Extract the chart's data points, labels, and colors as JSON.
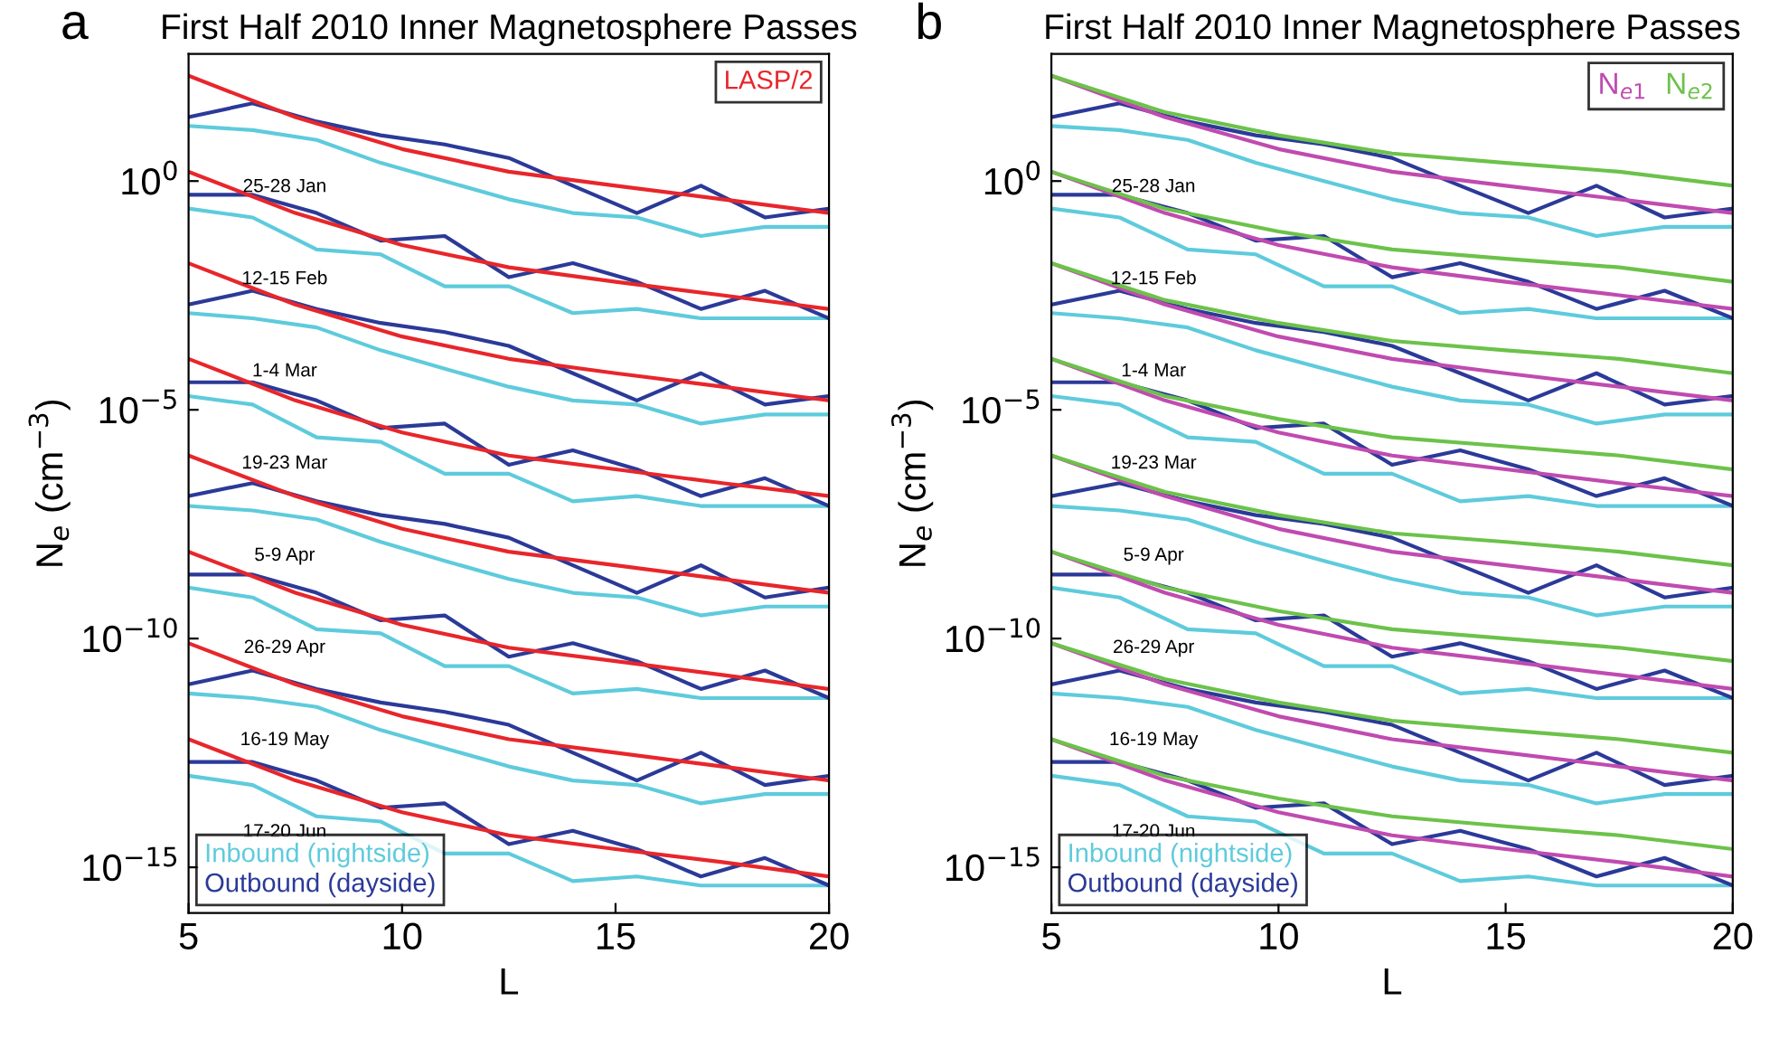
{
  "chart_data": [
    {
      "type": "line",
      "title": "First Half 2010 Inner Magnetosphere Passes",
      "xlabel": "L",
      "ylabel": "N$_{e}$ (cm$^{−3}$)",
      "log": "y",
      "xlim": [
        5,
        20
      ],
      "ylim": [
        1e-16,
        600
      ],
      "xticks": [
        5,
        10,
        15,
        20
      ],
      "yticks": [
        {
          "value": 1,
          "label": "10$^{0}$"
        },
        {
          "value": 1e-05,
          "label": "10$^{−5}$"
        },
        {
          "value": 1e-10,
          "label": "10$^{−10}$"
        },
        {
          "value": 1e-15,
          "label": "10$^{−15}$"
        }
      ],
      "legend": "bottom left",
      "line_style": "solid",
      "annotations": [
        "a",
        "25-28 Jan",
        "12-15 Feb",
        "1-4 Mar",
        "19-23 Mar",
        "5-9 Apr",
        "26-29 Apr",
        "16-19 May",
        "17-20 Jun"
      ],
      "series": [
        {
          "name": "Inbound (nightside)",
          "color": "#5ecbdc",
          "x": [
            5,
            6.5,
            8,
            9.5,
            11,
            12.5,
            14,
            15.5,
            17,
            18.5,
            20
          ],
          "values": [
            16,
            13,
            7.9,
            2.5,
            1,
            0.4,
            0.2,
            0.16,
            0.063,
            0.1,
            0.1
          ]
        },
        {
          "name": "Outbound (dayside)",
          "color": "#2b3a98",
          "x": [
            5,
            6.5,
            8,
            9.5,
            11,
            12.5,
            14,
            15.5,
            17,
            18.5,
            20
          ],
          "values": [
            25,
            50,
            20,
            10,
            6.3,
            3.2,
            0.79,
            0.2,
            0.79,
            0.16,
            0.25
          ]
        },
        {
          "name": "LASP/2",
          "color": "#e8262b",
          "x": [
            5,
            7.5,
            10,
            12.5,
            15,
            17.5,
            20
          ],
          "values": [
            200,
            25,
            5,
            1.6,
            0.79,
            0.4,
            0.2
          ]
        },
        {
          "color": "#5ecbdc",
          "x": [
            5,
            6.5,
            8,
            9.5,
            11,
            12.5,
            14,
            15.5,
            17,
            18.5,
            20
          ],
          "values": [
            0.25,
            0.16,
            0.032,
            0.025,
            0.005,
            0.005,
            0.0013,
            0.0016,
            0.001,
            0.001,
            0.001
          ]
        },
        {
          "color": "#2b3a98",
          "x": [
            5,
            6.5,
            8,
            9.5,
            11,
            12.5,
            14,
            15.5,
            17,
            18.5,
            20
          ],
          "values": [
            0.5,
            0.5,
            0.2,
            0.05,
            0.063,
            0.0079,
            0.016,
            0.0063,
            0.0016,
            0.004,
            0.001
          ]
        },
        {
          "color": "#e8262b",
          "x": [
            5,
            7.5,
            10,
            12.5,
            15,
            17.5,
            20
          ],
          "values": [
            1.6,
            0.2,
            0.04,
            0.013,
            0.0063,
            0.0032,
            0.0016
          ]
        },
        {
          "color": "#5ecbdc",
          "x": [
            5,
            6.5,
            8,
            9.5,
            11,
            12.5,
            14,
            15.5,
            17,
            18.5,
            20
          ],
          "values": [
            0.0013,
            0.001,
            0.00063,
            0.0002,
            7.9e-05,
            3.2e-05,
            1.6e-05,
            1.3e-05,
            5e-06,
            7.9e-06,
            7.9e-06
          ]
        },
        {
          "color": "#2b3a98",
          "x": [
            5,
            6.5,
            8,
            9.5,
            11,
            12.5,
            14,
            15.5,
            17,
            18.5,
            20
          ],
          "values": [
            0.002,
            0.004,
            0.0016,
            0.00079,
            0.0005,
            0.00025,
            6.3e-05,
            1.6e-05,
            6.3e-05,
            1.3e-05,
            2e-05
          ]
        },
        {
          "color": "#e8262b",
          "x": [
            5,
            7.5,
            10,
            12.5,
            15,
            17.5,
            20
          ],
          "values": [
            0.016,
            0.002,
            0.0004,
            0.00013,
            6.3e-05,
            3.2e-05,
            1.6e-05
          ]
        },
        {
          "color": "#5ecbdc",
          "x": [
            5,
            6.5,
            8,
            9.5,
            11,
            12.5,
            14,
            15.5,
            17,
            18.5,
            20
          ],
          "values": [
            2e-05,
            1.3e-05,
            2.5e-06,
            2e-06,
            4e-07,
            4e-07,
            1e-07,
            1.3e-07,
            7.9e-08,
            7.9e-08,
            7.9e-08
          ]
        },
        {
          "color": "#2b3a98",
          "x": [
            5,
            6.5,
            8,
            9.5,
            11,
            12.5,
            14,
            15.5,
            17,
            18.5,
            20
          ],
          "values": [
            4e-05,
            4e-05,
            1.6e-05,
            4e-06,
            5e-06,
            6.3e-07,
            1.3e-06,
            5e-07,
            1.3e-07,
            3.2e-07,
            7.9e-08
          ]
        },
        {
          "color": "#e8262b",
          "x": [
            5,
            7.5,
            10,
            12.5,
            15,
            17.5,
            20
          ],
          "values": [
            0.00013,
            1.6e-05,
            3.2e-06,
            1e-06,
            5e-07,
            2.5e-07,
            1.3e-07
          ]
        },
        {
          "color": "#5ecbdc",
          "x": [
            5,
            6.5,
            8,
            9.5,
            11,
            12.5,
            14,
            15.5,
            17,
            18.5,
            20
          ],
          "values": [
            7.9e-08,
            6.3e-08,
            4e-08,
            1.3e-08,
            5e-09,
            2e-09,
            1e-09,
            7.9e-10,
            3.2e-10,
            5e-10,
            5e-10
          ]
        },
        {
          "color": "#2b3a98",
          "x": [
            5,
            6.5,
            8,
            9.5,
            11,
            12.5,
            14,
            15.5,
            17,
            18.5,
            20
          ],
          "values": [
            1.3e-07,
            2.5e-07,
            1e-07,
            5e-08,
            3.2e-08,
            1.6e-08,
            4e-09,
            1e-09,
            4e-09,
            7.9e-10,
            1.3e-09
          ]
        },
        {
          "color": "#e8262b",
          "x": [
            5,
            7.5,
            10,
            12.5,
            15,
            17.5,
            20
          ],
          "values": [
            1e-06,
            1.3e-07,
            2.5e-08,
            7.9e-09,
            4e-09,
            2e-09,
            1e-09
          ]
        },
        {
          "color": "#5ecbdc",
          "x": [
            5,
            6.5,
            8,
            9.5,
            11,
            12.5,
            14,
            15.5,
            17,
            18.5,
            20
          ],
          "values": [
            1.3e-09,
            7.9e-10,
            1.6e-10,
            1.3e-10,
            2.5e-11,
            2.5e-11,
            6.3e-12,
            7.9e-12,
            5e-12,
            5e-12,
            5e-12
          ]
        },
        {
          "color": "#2b3a98",
          "x": [
            5,
            6.5,
            8,
            9.5,
            11,
            12.5,
            14,
            15.5,
            17,
            18.5,
            20
          ],
          "values": [
            2.5e-09,
            2.5e-09,
            1e-09,
            2.5e-10,
            3.2e-10,
            4e-11,
            7.9e-11,
            3.2e-11,
            7.9e-12,
            2e-11,
            5e-12
          ]
        },
        {
          "color": "#e8262b",
          "x": [
            5,
            7.5,
            10,
            12.5,
            15,
            17.5,
            20
          ],
          "values": [
            7.9e-09,
            1e-09,
            2e-10,
            6.3e-11,
            3.2e-11,
            1.6e-11,
            7.9e-12
          ]
        },
        {
          "color": "#5ecbdc",
          "x": [
            5,
            6.5,
            8,
            9.5,
            11,
            12.5,
            14,
            15.5,
            17,
            18.5,
            20
          ],
          "values": [
            6.3e-12,
            5e-12,
            3.2e-12,
            1e-12,
            4e-13,
            1.6e-13,
            7.9e-14,
            6.3e-14,
            2.5e-14,
            4e-14,
            4e-14
          ]
        },
        {
          "color": "#2b3a98",
          "x": [
            5,
            6.5,
            8,
            9.5,
            11,
            12.5,
            14,
            15.5,
            17,
            18.5,
            20
          ],
          "values": [
            1e-11,
            2e-11,
            7.9e-12,
            4e-12,
            2.5e-12,
            1.3e-12,
            3.2e-13,
            7.9e-14,
            3.2e-13,
            6.3e-14,
            1e-13
          ]
        },
        {
          "color": "#e8262b",
          "x": [
            5,
            7.5,
            10,
            12.5,
            15,
            17.5,
            20
          ],
          "values": [
            7.9e-11,
            1e-11,
            2e-12,
            6.3e-13,
            3.2e-13,
            1.6e-13,
            7.9e-14
          ]
        },
        {
          "color": "#5ecbdc",
          "x": [
            5,
            6.5,
            8,
            9.5,
            11,
            12.5,
            14,
            15.5,
            17,
            18.5,
            20
          ],
          "values": [
            1e-13,
            6.3e-14,
            1.3e-14,
            1e-14,
            2e-15,
            2e-15,
            5e-16,
            6.3e-16,
            4e-16,
            4e-16,
            4e-16
          ]
        },
        {
          "color": "#2b3a98",
          "x": [
            5,
            6.5,
            8,
            9.5,
            11,
            12.5,
            14,
            15.5,
            17,
            18.5,
            20
          ],
          "values": [
            2e-13,
            2e-13,
            7.9e-14,
            2e-14,
            2.5e-14,
            3.2e-15,
            6.3e-15,
            2.5e-15,
            6.3e-16,
            1.6e-15,
            4e-16
          ]
        },
        {
          "color": "#e8262b",
          "x": [
            5,
            7.5,
            10,
            12.5,
            15,
            17.5,
            20
          ],
          "values": [
            6.3e-13,
            7.9e-14,
            1.6e-14,
            5e-15,
            2.5e-15,
            1.3e-15,
            6.3e-16
          ]
        }
      ]
    },
    {
      "type": "line",
      "title": "First Half 2010 Inner Magnetosphere Passes",
      "xlabel": "L",
      "ylabel": "N$_{e}$ (cm$^{−3}$)",
      "log": "y",
      "xlim": [
        5,
        20
      ],
      "ylim": [
        1e-16,
        600
      ],
      "xticks": [
        5,
        10,
        15,
        20
      ],
      "yticks": [
        {
          "value": 1,
          "label": "10$^{0}$"
        },
        {
          "value": 1e-05,
          "label": "10$^{−5}$"
        },
        {
          "value": 1e-10,
          "label": "10$^{−10}$"
        },
        {
          "value": 1e-15,
          "label": "10$^{−15}$"
        }
      ],
      "legend": "bottom left",
      "line_style": "solid",
      "annotations": [
        "b",
        "25-28 Jan",
        "12-15 Feb",
        "1-4 Mar",
        "19-23 Mar",
        "5-9 Apr",
        "26-29 Apr",
        "16-19 May",
        "17-20 Jun"
      ],
      "series": [
        {
          "name": "Inbound (nightside)",
          "color": "#5ecbdc",
          "x": [
            5,
            6.5,
            8,
            9.5,
            11,
            12.5,
            14,
            15.5,
            17,
            18.5,
            20
          ],
          "values": [
            16,
            13,
            7.9,
            2.5,
            1,
            0.4,
            0.2,
            0.16,
            0.063,
            0.1,
            0.1
          ]
        },
        {
          "name": "Outbound (dayside)",
          "color": "#2b3a98",
          "x": [
            5,
            6.5,
            8,
            9.5,
            11,
            12.5,
            14,
            15.5,
            17,
            18.5,
            20
          ],
          "values": [
            25,
            50,
            20,
            10,
            6.3,
            3.2,
            0.79,
            0.2,
            0.79,
            0.16,
            0.25
          ]
        },
        {
          "name": "N$_{e1}$",
          "color": "#c04bb0",
          "x": [
            5,
            7.5,
            10,
            12.5,
            15,
            17.5,
            20
          ],
          "values": [
            200,
            25,
            5,
            1.6,
            0.79,
            0.4,
            0.2
          ]
        },
        {
          "name": "N$_{e2}$",
          "color": "#6cc24a",
          "x": [
            5,
            7.5,
            10,
            12.5,
            15,
            17.5,
            20
          ],
          "values": [
            200,
            32,
            10,
            4,
            2.5,
            1.6,
            0.79
          ]
        },
        {
          "color": "#5ecbdc",
          "x": [
            5,
            6.5,
            8,
            9.5,
            11,
            12.5,
            14,
            15.5,
            17,
            18.5,
            20
          ],
          "values": [
            0.25,
            0.16,
            0.032,
            0.025,
            0.005,
            0.005,
            0.0013,
            0.0016,
            0.001,
            0.001,
            0.001
          ]
        },
        {
          "color": "#2b3a98",
          "x": [
            5,
            6.5,
            8,
            9.5,
            11,
            12.5,
            14,
            15.5,
            17,
            18.5,
            20
          ],
          "values": [
            0.5,
            0.5,
            0.2,
            0.05,
            0.063,
            0.0079,
            0.016,
            0.0063,
            0.0016,
            0.004,
            0.001
          ]
        },
        {
          "color": "#c04bb0",
          "x": [
            5,
            7.5,
            10,
            12.5,
            15,
            17.5,
            20
          ],
          "values": [
            1.6,
            0.2,
            0.04,
            0.013,
            0.0063,
            0.0032,
            0.0016
          ]
        },
        {
          "color": "#6cc24a",
          "x": [
            5,
            7.5,
            10,
            12.5,
            15,
            17.5,
            20
          ],
          "values": [
            1.6,
            0.25,
            0.079,
            0.032,
            0.02,
            0.013,
            0.0063
          ]
        },
        {
          "color": "#5ecbdc",
          "x": [
            5,
            6.5,
            8,
            9.5,
            11,
            12.5,
            14,
            15.5,
            17,
            18.5,
            20
          ],
          "values": [
            0.0013,
            0.001,
            0.00063,
            0.0002,
            7.9e-05,
            3.2e-05,
            1.6e-05,
            1.3e-05,
            5e-06,
            7.9e-06,
            7.9e-06
          ]
        },
        {
          "color": "#2b3a98",
          "x": [
            5,
            6.5,
            8,
            9.5,
            11,
            12.5,
            14,
            15.5,
            17,
            18.5,
            20
          ],
          "values": [
            0.002,
            0.004,
            0.0016,
            0.00079,
            0.0005,
            0.00025,
            6.3e-05,
            1.6e-05,
            6.3e-05,
            1.3e-05,
            2e-05
          ]
        },
        {
          "color": "#c04bb0",
          "x": [
            5,
            7.5,
            10,
            12.5,
            15,
            17.5,
            20
          ],
          "values": [
            0.016,
            0.002,
            0.0004,
            0.00013,
            6.3e-05,
            3.2e-05,
            1.6e-05
          ]
        },
        {
          "color": "#6cc24a",
          "x": [
            5,
            7.5,
            10,
            12.5,
            15,
            17.5,
            20
          ],
          "values": [
            0.016,
            0.0025,
            0.00079,
            0.00032,
            0.0002,
            0.00013,
            6.3e-05
          ]
        },
        {
          "color": "#5ecbdc",
          "x": [
            5,
            6.5,
            8,
            9.5,
            11,
            12.5,
            14,
            15.5,
            17,
            18.5,
            20
          ],
          "values": [
            2e-05,
            1.3e-05,
            2.5e-06,
            2e-06,
            4e-07,
            4e-07,
            1e-07,
            1.3e-07,
            7.9e-08,
            7.9e-08,
            7.9e-08
          ]
        },
        {
          "color": "#2b3a98",
          "x": [
            5,
            6.5,
            8,
            9.5,
            11,
            12.5,
            14,
            15.5,
            17,
            18.5,
            20
          ],
          "values": [
            4e-05,
            4e-05,
            1.6e-05,
            4e-06,
            5e-06,
            6.3e-07,
            1.3e-06,
            5e-07,
            1.3e-07,
            3.2e-07,
            7.9e-08
          ]
        },
        {
          "color": "#c04bb0",
          "x": [
            5,
            7.5,
            10,
            12.5,
            15,
            17.5,
            20
          ],
          "values": [
            0.00013,
            1.6e-05,
            3.2e-06,
            1e-06,
            5e-07,
            2.5e-07,
            1.3e-07
          ]
        },
        {
          "color": "#6cc24a",
          "x": [
            5,
            7.5,
            10,
            12.5,
            15,
            17.5,
            20
          ],
          "values": [
            0.00013,
            2e-05,
            6.3e-06,
            2.5e-06,
            1.6e-06,
            1e-06,
            5e-07
          ]
        },
        {
          "color": "#5ecbdc",
          "x": [
            5,
            6.5,
            8,
            9.5,
            11,
            12.5,
            14,
            15.5,
            17,
            18.5,
            20
          ],
          "values": [
            7.9e-08,
            6.3e-08,
            4e-08,
            1.3e-08,
            5e-09,
            2e-09,
            1e-09,
            7.9e-10,
            3.2e-10,
            5e-10,
            5e-10
          ]
        },
        {
          "color": "#2b3a98",
          "x": [
            5,
            6.5,
            8,
            9.5,
            11,
            12.5,
            14,
            15.5,
            17,
            18.5,
            20
          ],
          "values": [
            1.3e-07,
            2.5e-07,
            1e-07,
            5e-08,
            3.2e-08,
            1.6e-08,
            4e-09,
            1e-09,
            4e-09,
            7.9e-10,
            1.3e-09
          ]
        },
        {
          "color": "#c04bb0",
          "x": [
            5,
            7.5,
            10,
            12.5,
            15,
            17.5,
            20
          ],
          "values": [
            1e-06,
            1.3e-07,
            2.5e-08,
            7.9e-09,
            4e-09,
            2e-09,
            1e-09
          ]
        },
        {
          "color": "#6cc24a",
          "x": [
            5,
            7.5,
            10,
            12.5,
            15,
            17.5,
            20
          ],
          "values": [
            1e-06,
            1.6e-07,
            5e-08,
            2e-08,
            1.3e-08,
            7.9e-09,
            4e-09
          ]
        },
        {
          "color": "#5ecbdc",
          "x": [
            5,
            6.5,
            8,
            9.5,
            11,
            12.5,
            14,
            15.5,
            17,
            18.5,
            20
          ],
          "values": [
            1.3e-09,
            7.9e-10,
            1.6e-10,
            1.3e-10,
            2.5e-11,
            2.5e-11,
            6.3e-12,
            7.9e-12,
            5e-12,
            5e-12,
            5e-12
          ]
        },
        {
          "color": "#2b3a98",
          "x": [
            5,
            6.5,
            8,
            9.5,
            11,
            12.5,
            14,
            15.5,
            17,
            18.5,
            20
          ],
          "values": [
            2.5e-09,
            2.5e-09,
            1e-09,
            2.5e-10,
            3.2e-10,
            4e-11,
            7.9e-11,
            3.2e-11,
            7.9e-12,
            2e-11,
            5e-12
          ]
        },
        {
          "color": "#c04bb0",
          "x": [
            5,
            7.5,
            10,
            12.5,
            15,
            17.5,
            20
          ],
          "values": [
            7.9e-09,
            1e-09,
            2e-10,
            6.3e-11,
            3.2e-11,
            1.6e-11,
            7.9e-12
          ]
        },
        {
          "color": "#6cc24a",
          "x": [
            5,
            7.5,
            10,
            12.5,
            15,
            17.5,
            20
          ],
          "values": [
            7.9e-09,
            1.3e-09,
            4e-10,
            1.6e-10,
            1e-10,
            6.3e-11,
            3.2e-11
          ]
        },
        {
          "color": "#5ecbdc",
          "x": [
            5,
            6.5,
            8,
            9.5,
            11,
            12.5,
            14,
            15.5,
            17,
            18.5,
            20
          ],
          "values": [
            6.3e-12,
            5e-12,
            3.2e-12,
            1e-12,
            4e-13,
            1.6e-13,
            7.9e-14,
            6.3e-14,
            2.5e-14,
            4e-14,
            4e-14
          ]
        },
        {
          "color": "#2b3a98",
          "x": [
            5,
            6.5,
            8,
            9.5,
            11,
            12.5,
            14,
            15.5,
            17,
            18.5,
            20
          ],
          "values": [
            1e-11,
            2e-11,
            7.9e-12,
            4e-12,
            2.5e-12,
            1.3e-12,
            3.2e-13,
            7.9e-14,
            3.2e-13,
            6.3e-14,
            1e-13
          ]
        },
        {
          "color": "#c04bb0",
          "x": [
            5,
            7.5,
            10,
            12.5,
            15,
            17.5,
            20
          ],
          "values": [
            7.9e-11,
            1e-11,
            2e-12,
            6.3e-13,
            3.2e-13,
            1.6e-13,
            7.9e-14
          ]
        },
        {
          "color": "#6cc24a",
          "x": [
            5,
            7.5,
            10,
            12.5,
            15,
            17.5,
            20
          ],
          "values": [
            7.9e-11,
            1.3e-11,
            4e-12,
            1.6e-12,
            1e-12,
            6.3e-13,
            3.2e-13
          ]
        },
        {
          "color": "#5ecbdc",
          "x": [
            5,
            6.5,
            8,
            9.5,
            11,
            12.5,
            14,
            15.5,
            17,
            18.5,
            20
          ],
          "values": [
            1e-13,
            6.3e-14,
            1.3e-14,
            1e-14,
            2e-15,
            2e-15,
            5e-16,
            6.3e-16,
            4e-16,
            4e-16,
            4e-16
          ]
        },
        {
          "color": "#2b3a98",
          "x": [
            5,
            6.5,
            8,
            9.5,
            11,
            12.5,
            14,
            15.5,
            17,
            18.5,
            20
          ],
          "values": [
            2e-13,
            2e-13,
            7.9e-14,
            2e-14,
            2.5e-14,
            3.2e-15,
            6.3e-15,
            2.5e-15,
            6.3e-16,
            1.6e-15,
            4e-16
          ]
        },
        {
          "color": "#c04bb0",
          "x": [
            5,
            7.5,
            10,
            12.5,
            15,
            17.5,
            20
          ],
          "values": [
            6.3e-13,
            7.9e-14,
            1.6e-14,
            5e-15,
            2.5e-15,
            1.3e-15,
            6.3e-16
          ]
        },
        {
          "color": "#6cc24a",
          "x": [
            5,
            7.5,
            10,
            12.5,
            15,
            17.5,
            20
          ],
          "values": [
            6.3e-13,
            1e-13,
            3.2e-14,
            1.3e-14,
            7.9e-15,
            5e-15,
            2.5e-15
          ]
        }
      ]
    }
  ]
}
